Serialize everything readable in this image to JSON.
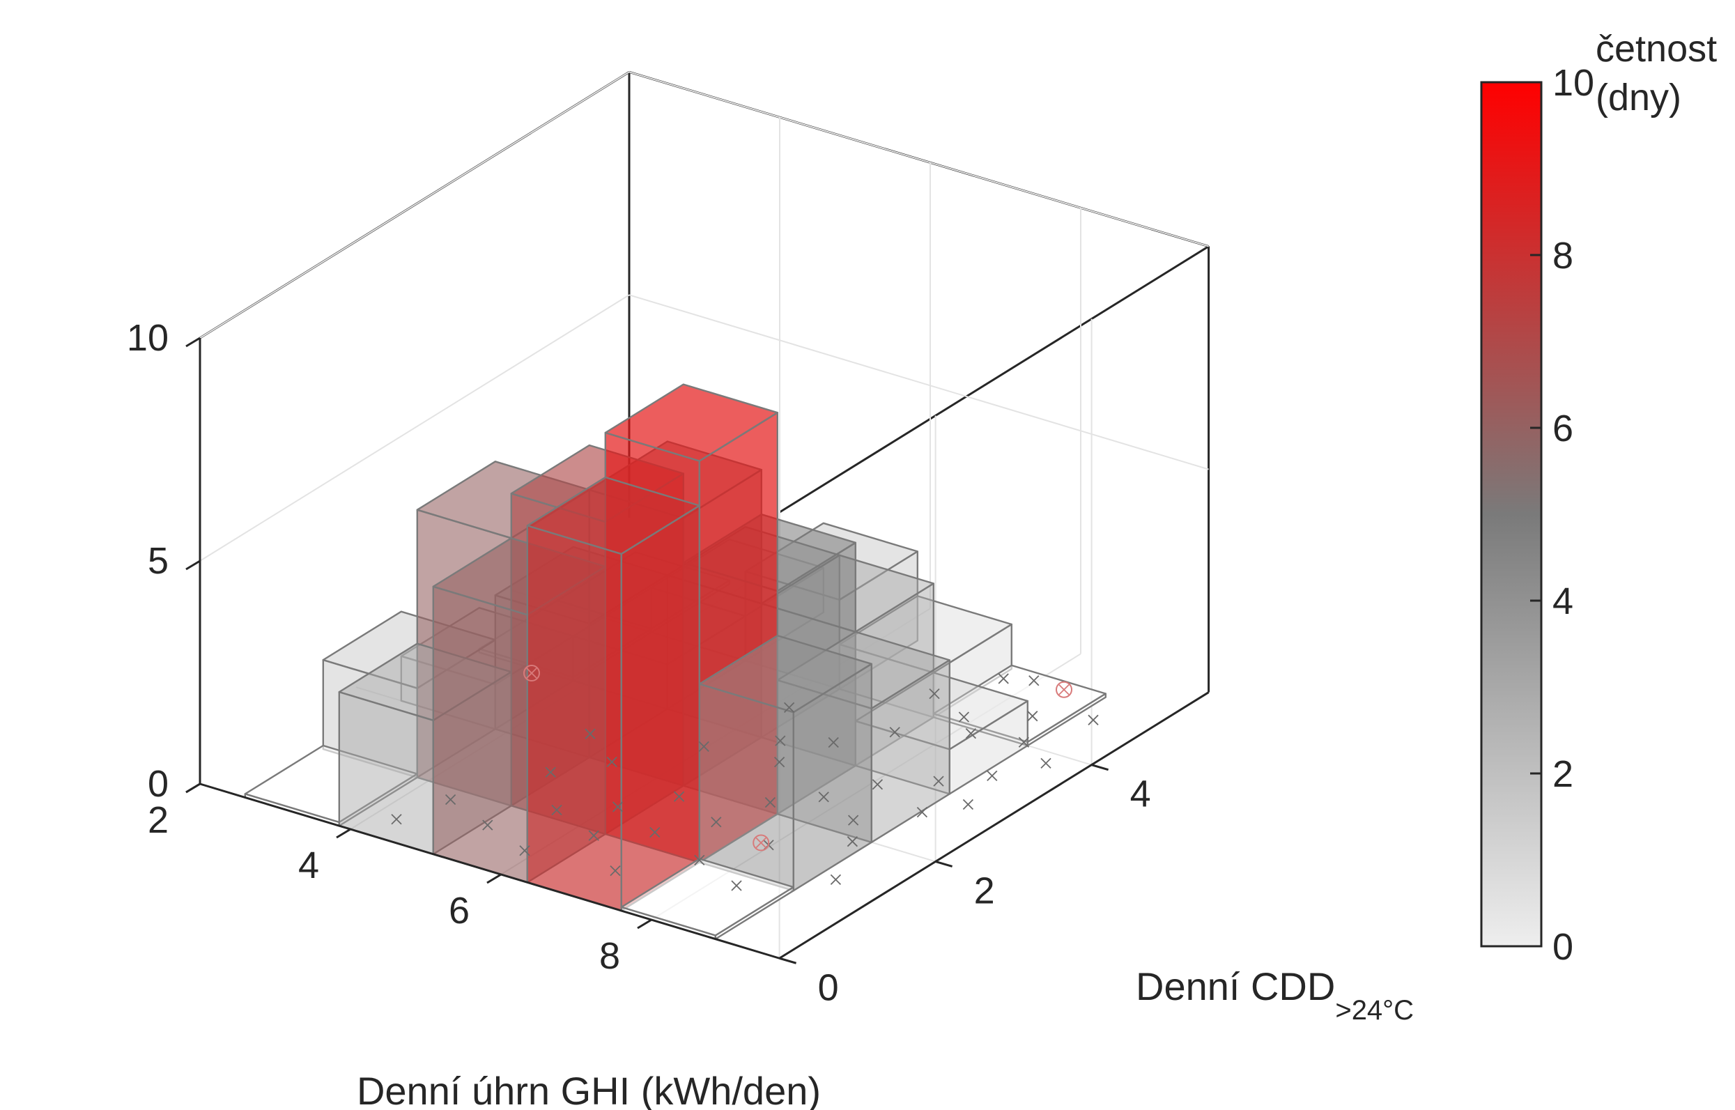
{
  "chart_data": {
    "type": "histogram3d",
    "xlabel": "Denní úhrn GHI (kWh/den)",
    "ylabel_main": "Denní CDD",
    "ylabel_sub": ">24°C",
    "colorbar_label_line1": "četnost",
    "colorbar_label_line2": "(dny)",
    "x_ticks": [
      "2",
      "4",
      "6",
      "8"
    ],
    "y_ticks": [
      "0",
      "2",
      "4"
    ],
    "z_ticks": [
      "0",
      "5",
      "10"
    ],
    "colorbar_ticks": [
      "0",
      "2",
      "4",
      "6",
      "8",
      "10"
    ],
    "xlim": [
      2,
      9.7
    ],
    "ylim": [
      0,
      5.5
    ],
    "zlim": [
      0,
      10
    ],
    "clim": [
      0,
      10
    ],
    "x_bin_edges": [
      2.6,
      3.85,
      5.1,
      6.35,
      7.6,
      8.85
    ],
    "y_bin_edges": [
      0,
      1,
      2,
      3,
      4,
      5
    ],
    "counts": [
      [
        0,
        2,
        1,
        0,
        0
      ],
      [
        3,
        6,
        3,
        1,
        1
      ],
      [
        6,
        7,
        6,
        3,
        2
      ],
      [
        8,
        9,
        5,
        3,
        1
      ],
      [
        0,
        4,
        3,
        1,
        0
      ]
    ],
    "scatter_points": [
      {
        "x": 4.3,
        "y": 0.3
      },
      {
        "x": 4.5,
        "y": 0.8
      },
      {
        "x": 5.2,
        "y": 0.6
      },
      {
        "x": 5.6,
        "y": 1.1
      },
      {
        "x": 5.9,
        "y": 0.4
      },
      {
        "x": 6.1,
        "y": 1.4
      },
      {
        "x": 6.3,
        "y": 0.9
      },
      {
        "x": 6.5,
        "y": 1.8
      },
      {
        "x": 6.8,
        "y": 1.2
      },
      {
        "x": 7.0,
        "y": 0.5
      },
      {
        "x": 7.2,
        "y": 1.6
      },
      {
        "x": 7.4,
        "y": 2.1
      },
      {
        "x": 7.6,
        "y": 1.0
      },
      {
        "x": 7.8,
        "y": 2.4
      },
      {
        "x": 8.0,
        "y": 1.5
      },
      {
        "x": 8.1,
        "y": 2.8
      },
      {
        "x": 8.3,
        "y": 0.8
      },
      {
        "x": 8.4,
        "y": 2.2
      },
      {
        "x": 8.6,
        "y": 3.1
      },
      {
        "x": 8.7,
        "y": 1.9
      },
      {
        "x": 8.9,
        "y": 2.6
      },
      {
        "x": 9.0,
        "y": 3.4
      },
      {
        "x": 9.1,
        "y": 1.3
      },
      {
        "x": 9.2,
        "y": 2.9
      },
      {
        "x": 9.3,
        "y": 3.8
      },
      {
        "x": 6.9,
        "y": 2.7
      },
      {
        "x": 7.1,
        "y": 3.2
      },
      {
        "x": 7.5,
        "y": 3.6
      },
      {
        "x": 7.9,
        "y": 4.1
      },
      {
        "x": 8.2,
        "y": 3.9
      },
      {
        "x": 8.5,
        "y": 4.4
      },
      {
        "x": 8.8,
        "y": 4.0
      },
      {
        "x": 9.1,
        "y": 4.6
      },
      {
        "x": 5.4,
        "y": 2.0
      },
      {
        "x": 5.0,
        "y": 1.6
      },
      {
        "x": 6.0,
        "y": 2.6
      },
      {
        "x": 6.6,
        "y": 3.0
      },
      {
        "x": 7.3,
        "y": 4.3
      },
      {
        "x": 7.7,
        "y": 4.8
      },
      {
        "x": 8.0,
        "y": 4.9
      },
      {
        "x": 4.8,
        "y": 2.3
      },
      {
        "x": 6.2,
        "y": 3.5
      }
    ],
    "outlier_points": [
      {
        "x": 3.4,
        "y": 2.9
      },
      {
        "x": 8.4,
        "y": 4.9
      },
      {
        "x": 7.9,
        "y": 1.5
      }
    ],
    "colormap": [
      "#eeeeee",
      "#7a7a7a",
      "#ff0000"
    ],
    "bar_opacity": 0.35
  }
}
